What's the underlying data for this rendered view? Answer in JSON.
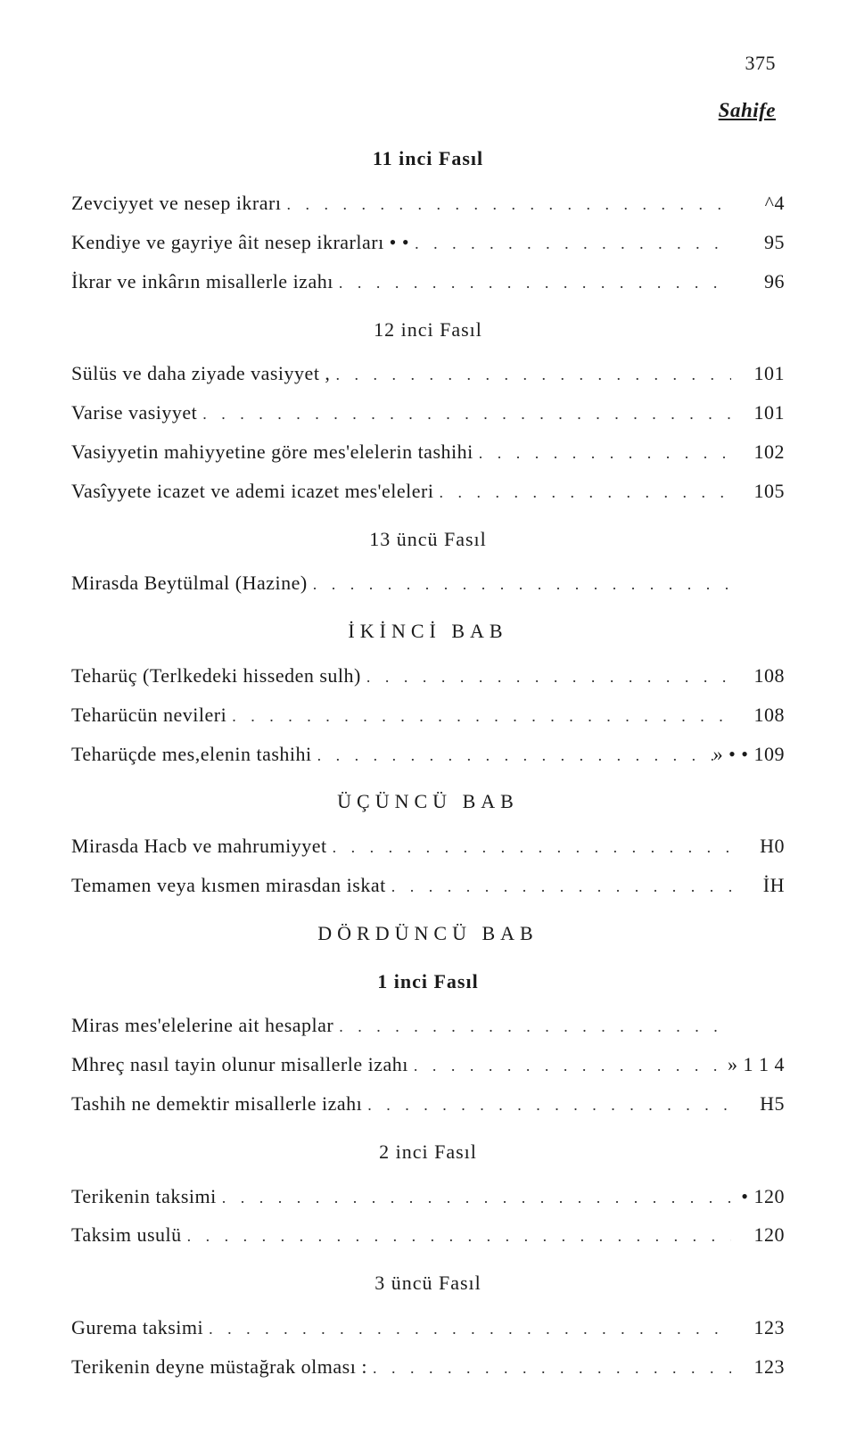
{
  "page_number": "375",
  "header": "Sahife",
  "leader_dots": ". . . . . . . . . . . . . . . . . . . . . . . . . . . . . . . . . . . . . .",
  "sections": [
    {
      "title": "11 inci Fasıl",
      "title_bold": true,
      "entries": [
        {
          "label": "Zevciyyet ve nesep ikrarı",
          "page": "^4"
        },
        {
          "label": "Kendiye ve gayriye âit nesep ikrarları   •  •",
          "page": "95"
        },
        {
          "label": "İkrar ve inkârın misallerle izahı",
          "page": "96"
        }
      ]
    },
    {
      "title": "12 inci  Fasıl",
      "title_bold": false,
      "entries": [
        {
          "label": "Sülüs ve daha ziyade vasiyyet   ,",
          "page": "101"
        },
        {
          "label": "Varise vasiyyet",
          "page": "101"
        },
        {
          "label": "Vasiyyetin mahiyyetine göre mes'elelerin tashihi",
          "page": "102"
        },
        {
          "label": "Vasîyyete icazet ve ademi icazet mes'eleleri",
          "page": "105"
        }
      ]
    },
    {
      "title": "13 üncü Fasıl",
      "title_bold": false,
      "entries": [
        {
          "label": "Mirasda Beytülmal (Hazine)",
          "page": ""
        }
      ]
    },
    {
      "title": "İKİNCİ  BAB",
      "title_bold": false,
      "caps": true,
      "entries": [
        {
          "label": "Teharüç (Terlkedeki hisseden sulh)",
          "page": "108"
        },
        {
          "label": "Teharücün nevileri",
          "page": "108"
        },
        {
          "label": "Teharüçde mes,elenin tashihi",
          "page": "»  •  •  109"
        }
      ]
    },
    {
      "title": "ÜÇÜNCÜ  BAB",
      "title_bold": false,
      "caps": true,
      "entries": [
        {
          "label": "Mirasda Hacb ve mahrumiyyet",
          "page": "H0"
        },
        {
          "label": "Temamen veya kısmen mirasdan iskat",
          "page": "İH"
        }
      ]
    },
    {
      "title": "DÖRDÜNCÜ BAB",
      "title_bold": false,
      "caps": true,
      "entries": []
    },
    {
      "title": "1 inci  Fasıl",
      "title_bold": true,
      "entries": [
        {
          "label": "Miras mes'elelerine ait hesaplar",
          "page": ""
        },
        {
          "label": "Mhreç nasıl tayin olunur misallerle izahı",
          "page": "» 1 1 4"
        },
        {
          "label": "Tashih ne demektir misallerle izahı",
          "page": "H5"
        }
      ]
    },
    {
      "title": "2 inci Fasıl",
      "title_bold": false,
      "entries": [
        {
          "label": "Terikenin taksimi",
          "page": "•   120"
        },
        {
          "label": "Taksim usulü",
          "page": "120"
        }
      ]
    },
    {
      "title": "3 üncü  Fasıl",
      "title_bold": false,
      "entries": [
        {
          "label": "Gurema taksimi",
          "page": "123"
        },
        {
          "label": "Terikenin deyne müstağrak olması  :",
          "page": "123"
        }
      ]
    }
  ]
}
